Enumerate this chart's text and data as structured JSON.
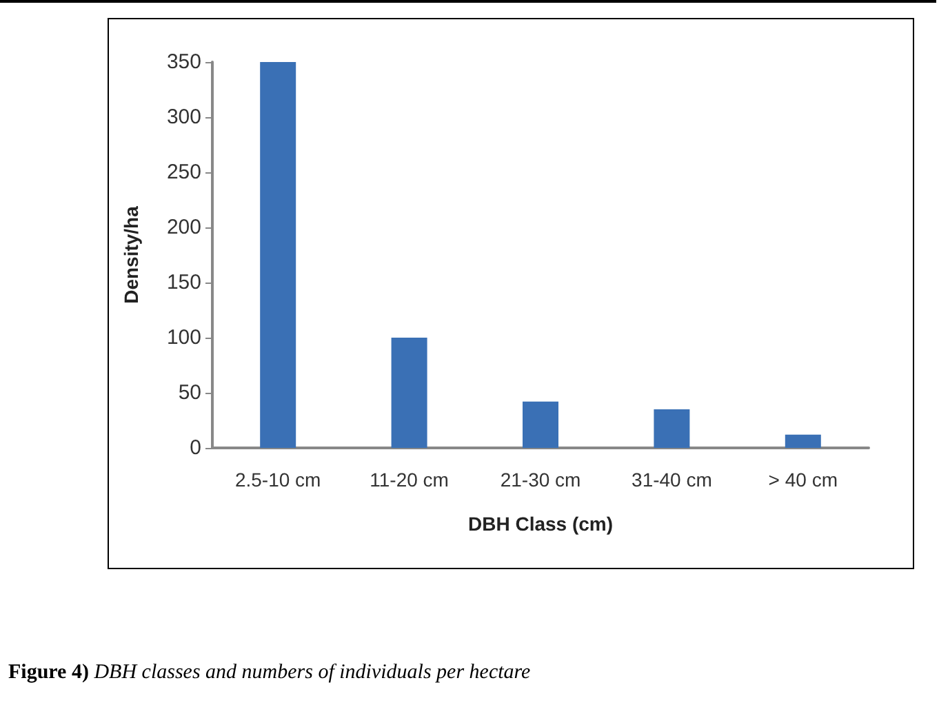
{
  "chart_data": {
    "type": "bar",
    "xlabel": "DBH Class (cm)",
    "ylabel": "Density/ha",
    "categories": [
      "2.5-10 cm",
      "11-20 cm",
      "21-30 cm",
      "31-40 cm",
      "> 40 cm"
    ],
    "values": [
      350,
      100,
      42,
      35,
      12
    ],
    "color": "#3a70b5",
    "ylim": [
      0,
      350
    ],
    "yticks": [
      0,
      50,
      100,
      150,
      200,
      250,
      300,
      350
    ],
    "grid": false,
    "annotations": [
      "Figure 4) DBH classes and numbers of individuals per hectare"
    ]
  }
}
